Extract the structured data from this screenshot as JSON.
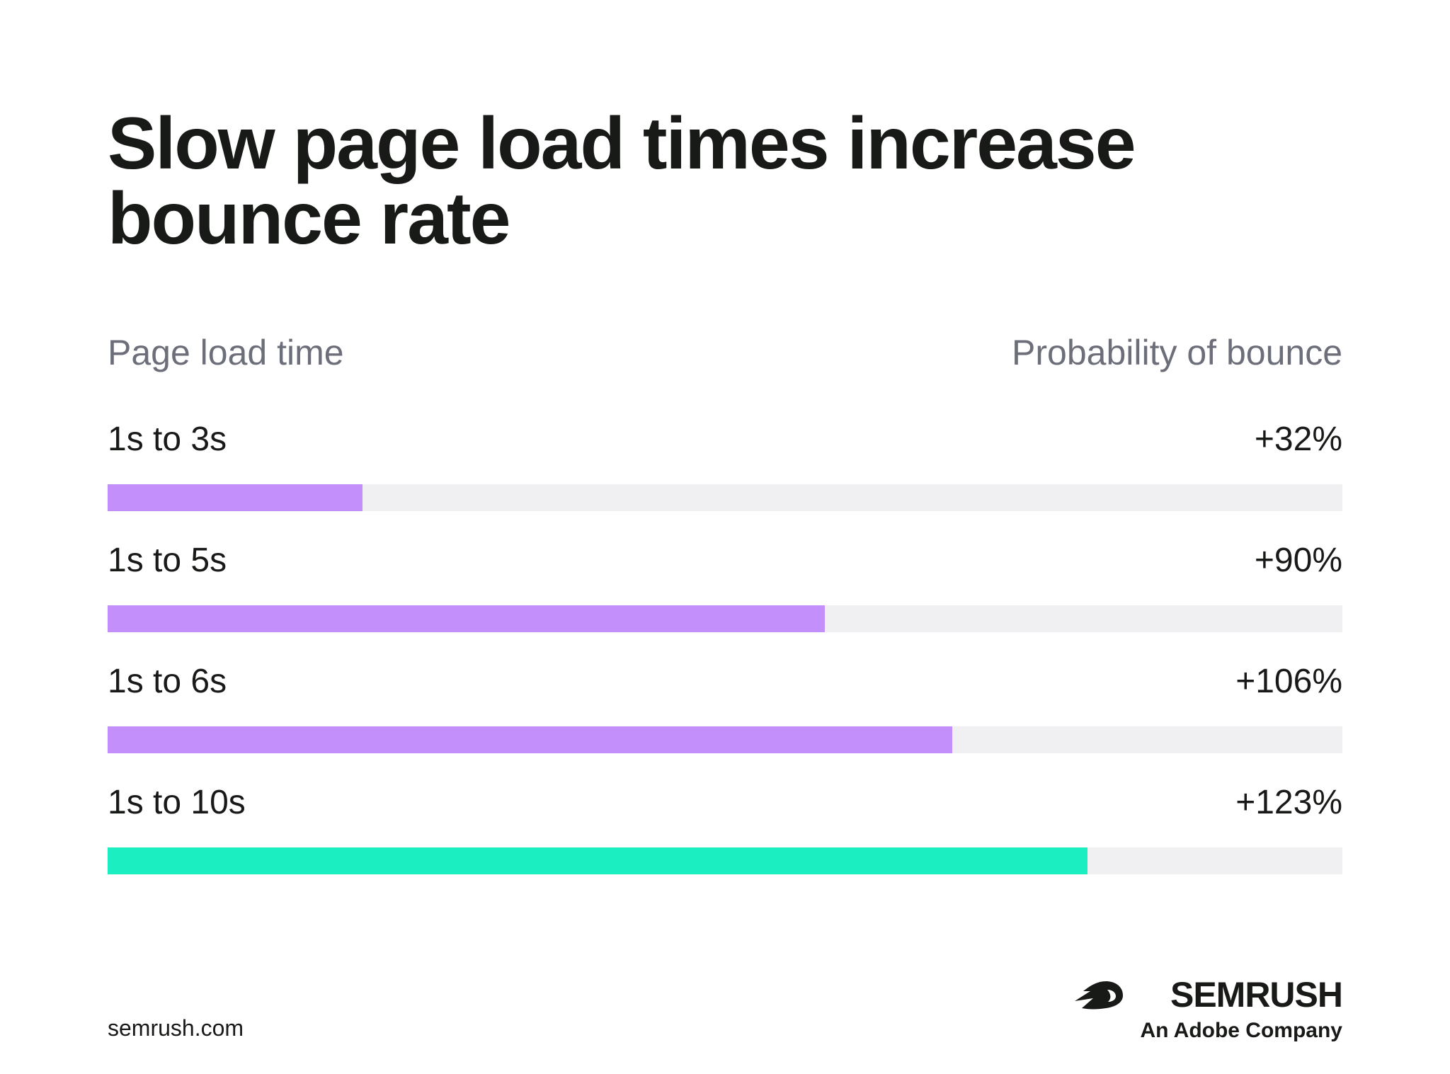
{
  "title": "Slow page load times increase bounce rate",
  "columns": {
    "left": "Page load time",
    "right": "Probability of bounce"
  },
  "chart_data": {
    "type": "bar",
    "orientation": "horizontal",
    "title": "Slow page load times increase bounce rate",
    "xlabel": "Probability of bounce",
    "ylabel": "Page load time",
    "categories": [
      "1s to 3s",
      "1s to 5s",
      "1s to 6s",
      "1s to 10s"
    ],
    "values": [
      32,
      90,
      106,
      123
    ],
    "value_labels": [
      "+32%",
      "+90%",
      "+106%",
      "+123%"
    ],
    "unit": "%",
    "colors": [
      "#c28ffb",
      "#c28ffb",
      "#c28ffb",
      "#1beec0"
    ],
    "track_color": "#f0f0f2",
    "legend": "none",
    "grid": false
  },
  "footer": {
    "url": "semrush.com"
  },
  "brand": {
    "name": "SEMRUSH",
    "tagline": "An Adobe Company",
    "icon": "semrush-fireball-icon"
  }
}
